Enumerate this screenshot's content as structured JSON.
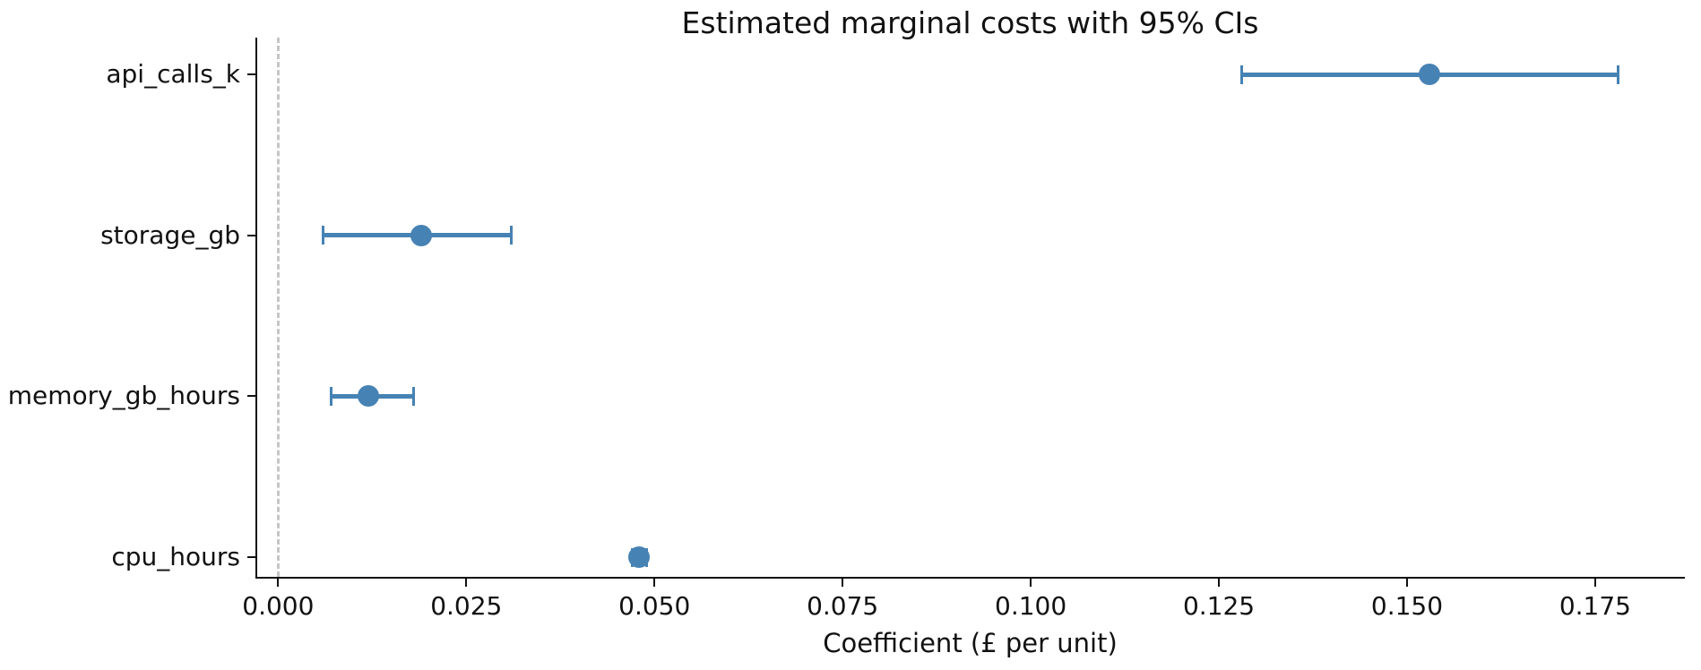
{
  "chart_data": {
    "type": "scatter",
    "title": "Estimated marginal costs with 95% CIs",
    "xlabel": "Coefficient (£ per unit)",
    "ylabel": "",
    "categories": [
      "api_calls_k",
      "storage_gb",
      "memory_gb_hours",
      "cpu_hours"
    ],
    "series": [
      {
        "values": [
          0.153,
          0.019,
          0.012,
          0.048
        ],
        "ci_low": [
          0.128,
          0.006,
          0.007,
          0.047
        ],
        "ci_high": [
          0.178,
          0.031,
          0.018,
          0.049
        ]
      }
    ],
    "x_ticks": [
      0,
      0.025,
      0.05,
      0.075,
      0.1,
      0.125,
      0.15,
      0.175
    ],
    "x_tick_labels": [
      "0.000",
      "0.025",
      "0.050",
      "0.075",
      "0.100",
      "0.125",
      "0.150",
      "0.175"
    ],
    "xlim": [
      -0.0029,
      0.1868
    ],
    "zero_line_x": 0,
    "grid": false,
    "legend_position": "none",
    "colors": {
      "marker": "#4682b4",
      "zero_line": "#c6c6c6",
      "axis": "#111111",
      "text": "#111111"
    }
  }
}
